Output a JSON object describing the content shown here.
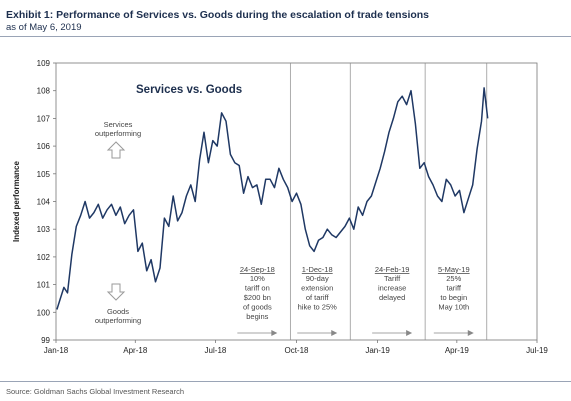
{
  "header": {
    "title": "Exhibit 1: Performance of Services vs. Goods during the escalation of trade tensions",
    "subtitle": "as of May 6, 2019"
  },
  "footer": {
    "source": "Source: Goldman Sachs Global Investment Research"
  },
  "chart_data": {
    "type": "line",
    "title": "Services vs. Goods",
    "xlabel": "",
    "ylabel": "Indexed performance",
    "xlim": [
      "2018-01-01",
      "2019-07-01"
    ],
    "ylim": [
      99,
      109
    ],
    "grid": false,
    "x_ticks": [
      "Jan-18",
      "Apr-18",
      "Jul-18",
      "Oct-18",
      "Jan-19",
      "Apr-19",
      "Jul-19"
    ],
    "y_ticks": [
      99,
      100,
      101,
      102,
      103,
      104,
      105,
      106,
      107,
      108,
      109
    ],
    "line_color": "#1f3864",
    "series": [
      {
        "x": [
          "2018-01-02",
          "2018-01-06",
          "2018-01-10",
          "2018-01-14",
          "2018-01-19",
          "2018-01-24",
          "2018-01-29",
          "2018-02-03",
          "2018-02-08",
          "2018-02-13",
          "2018-02-18",
          "2018-02-23",
          "2018-02-28",
          "2018-03-05",
          "2018-03-10",
          "2018-03-15",
          "2018-03-20",
          "2018-03-25",
          "2018-03-30",
          "2018-04-04",
          "2018-04-09",
          "2018-04-14",
          "2018-04-19",
          "2018-04-24",
          "2018-04-29",
          "2018-05-04",
          "2018-05-09",
          "2018-05-14",
          "2018-05-19",
          "2018-05-24",
          "2018-05-29",
          "2018-06-03",
          "2018-06-08",
          "2018-06-13",
          "2018-06-18",
          "2018-06-23",
          "2018-06-28",
          "2018-07-03",
          "2018-07-08",
          "2018-07-13",
          "2018-07-18",
          "2018-07-23",
          "2018-07-28",
          "2018-08-02",
          "2018-08-07",
          "2018-08-12",
          "2018-08-17",
          "2018-08-22",
          "2018-08-27",
          "2018-09-01",
          "2018-09-06",
          "2018-09-11",
          "2018-09-16",
          "2018-09-21",
          "2018-09-26",
          "2018-10-01",
          "2018-10-06",
          "2018-10-11",
          "2018-10-16",
          "2018-10-21",
          "2018-10-26",
          "2018-10-31",
          "2018-11-05",
          "2018-11-10",
          "2018-11-15",
          "2018-11-20",
          "2018-11-25",
          "2018-11-30",
          "2018-12-05",
          "2018-12-10",
          "2018-12-15",
          "2018-12-20",
          "2018-12-25",
          "2018-12-30",
          "2019-01-04",
          "2019-01-09",
          "2019-01-14",
          "2019-01-19",
          "2019-01-24",
          "2019-01-29",
          "2019-02-03",
          "2019-02-08",
          "2019-02-13",
          "2019-02-18",
          "2019-02-23",
          "2019-02-28",
          "2019-03-05",
          "2019-03-10",
          "2019-03-15",
          "2019-03-20",
          "2019-03-25",
          "2019-03-30",
          "2019-04-04",
          "2019-04-09",
          "2019-04-14",
          "2019-04-19",
          "2019-04-24",
          "2019-04-29",
          "2019-05-02",
          "2019-05-06"
        ],
        "values": [
          100.1,
          100.5,
          100.9,
          100.7,
          102.1,
          103.1,
          103.5,
          104.0,
          103.4,
          103.6,
          103.9,
          103.4,
          103.7,
          103.9,
          103.5,
          103.8,
          103.2,
          103.5,
          103.7,
          102.2,
          102.5,
          101.5,
          101.9,
          101.1,
          101.6,
          103.4,
          103.1,
          104.2,
          103.3,
          103.6,
          104.2,
          104.6,
          104.0,
          105.5,
          106.5,
          105.4,
          106.2,
          106.0,
          107.2,
          106.9,
          105.7,
          105.4,
          105.3,
          104.3,
          104.9,
          104.5,
          104.6,
          103.9,
          104.8,
          104.8,
          104.5,
          105.2,
          104.8,
          104.5,
          104.0,
          104.3,
          103.9,
          103.0,
          102.4,
          102.2,
          102.6,
          102.7,
          103.0,
          102.8,
          102.7,
          102.9,
          103.1,
          103.4,
          103.0,
          103.8,
          103.5,
          104.0,
          104.2,
          104.7,
          105.2,
          105.8,
          106.5,
          107.0,
          107.6,
          107.8,
          107.5,
          108.0,
          106.8,
          105.2,
          105.4,
          104.9,
          104.6,
          104.2,
          104.0,
          104.8,
          104.6,
          104.2,
          104.4,
          103.6,
          104.1,
          104.6,
          105.9,
          106.9,
          108.1,
          107.0
        ]
      }
    ],
    "annotations": [
      {
        "date": "2018-09-24",
        "header": "24-Sep-18",
        "lines": [
          "10%",
          "tariff on",
          "$200 bn",
          "of goods",
          "begins"
        ]
      },
      {
        "date": "2018-12-01",
        "header": "1-Dec-18",
        "lines": [
          "90-day",
          "extension",
          "of tariff",
          "hike to 25%"
        ]
      },
      {
        "date": "2019-02-24",
        "header": "24-Feb-19",
        "lines": [
          "Tariff",
          "increase",
          "delayed"
        ]
      },
      {
        "date": "2019-05-05",
        "header": "5-May-19",
        "lines": [
          "25%",
          "tariff",
          "to begin",
          "May 10th"
        ]
      }
    ],
    "labels": {
      "services": [
        "Services",
        "outperforming"
      ],
      "goods": [
        "Goods",
        "outperforming"
      ]
    }
  }
}
